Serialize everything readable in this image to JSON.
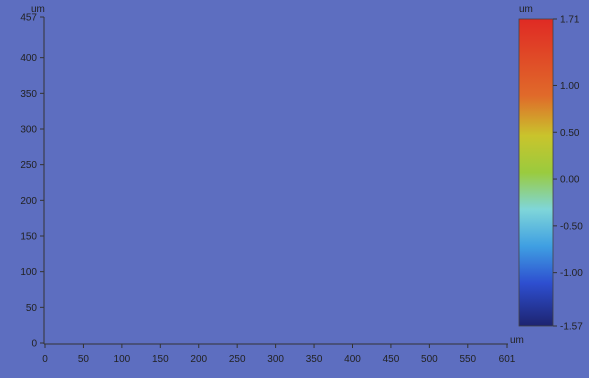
{
  "map": {
    "x_unit": "um",
    "y_unit": "um",
    "x_range": [
      0,
      601
    ],
    "y_range": [
      0,
      457
    ],
    "x_ticks": [
      "0",
      "50",
      "100",
      "150",
      "200",
      "250",
      "300",
      "350",
      "400",
      "450",
      "500",
      "550",
      "601"
    ],
    "y_ticks": [
      "0",
      "50",
      "100",
      "150",
      "200",
      "250",
      "300",
      "350",
      "400",
      "457"
    ],
    "colormap": [
      "#1d2a86",
      "#2e4fd0",
      "#3fa6e6",
      "#7fd6d9",
      "#9acb3e",
      "#c9c42c",
      "#e3862a",
      "#e23a2a",
      "#d22222"
    ]
  },
  "colorbar": {
    "unit": "um",
    "range": [
      -1.57,
      1.71
    ],
    "labels": [
      "1.71",
      "1.00",
      "0.50",
      "0.00",
      "-0.50",
      "-1.00",
      "-1.57"
    ]
  }
}
